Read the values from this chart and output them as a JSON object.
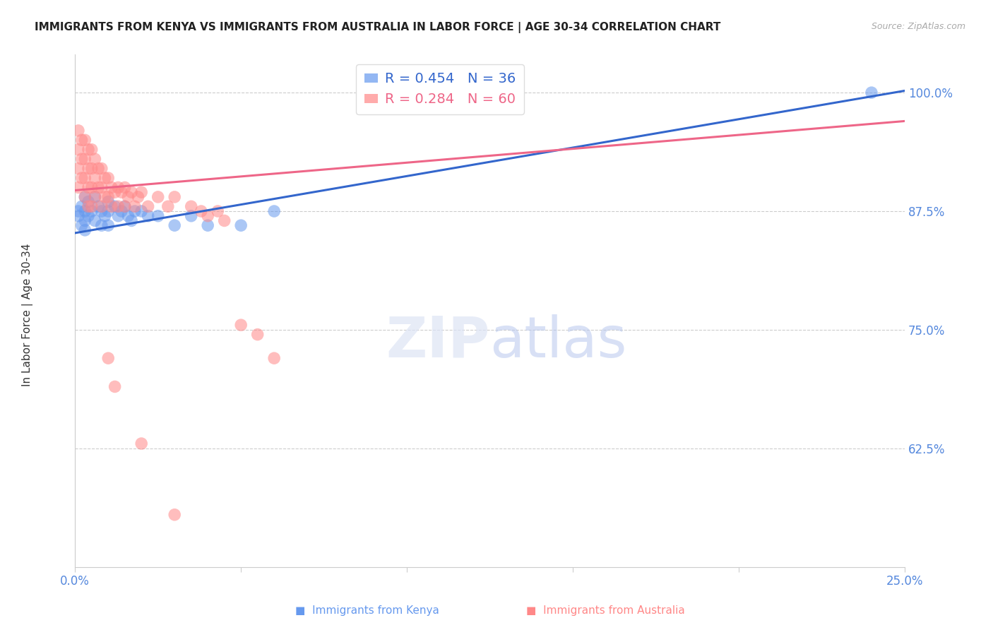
{
  "title": "IMMIGRANTS FROM KENYA VS IMMIGRANTS FROM AUSTRALIA IN LABOR FORCE | AGE 30-34 CORRELATION CHART",
  "source": "Source: ZipAtlas.com",
  "ylabel": "In Labor Force | Age 30-34",
  "xlim": [
    0.0,
    0.25
  ],
  "ylim": [
    0.5,
    1.04
  ],
  "xticks": [
    0.0,
    0.05,
    0.1,
    0.15,
    0.2,
    0.25
  ],
  "xticklabels": [
    "0.0%",
    "",
    "",
    "",
    "",
    "25.0%"
  ],
  "yticks": [
    0.625,
    0.75,
    0.875,
    1.0
  ],
  "yticklabels": [
    "62.5%",
    "75.0%",
    "87.5%",
    "100.0%"
  ],
  "kenya_color": "#6699EE",
  "australia_color": "#FF8888",
  "kenya_R": 0.454,
  "kenya_N": 36,
  "australia_R": 0.284,
  "australia_N": 60,
  "kenya_line_color": "#3366CC",
  "australia_line_color": "#EE6688",
  "kenya_scatter_x": [
    0.001,
    0.001,
    0.002,
    0.002,
    0.003,
    0.003,
    0.003,
    0.003,
    0.004,
    0.004,
    0.005,
    0.006,
    0.006,
    0.007,
    0.008,
    0.008,
    0.009,
    0.01,
    0.01,
    0.01,
    0.012,
    0.013,
    0.014,
    0.015,
    0.016,
    0.017,
    0.018,
    0.02,
    0.022,
    0.025,
    0.03,
    0.035,
    0.04,
    0.05,
    0.06,
    0.24
  ],
  "kenya_scatter_y": [
    0.875,
    0.87,
    0.88,
    0.86,
    0.89,
    0.875,
    0.865,
    0.855,
    0.885,
    0.87,
    0.875,
    0.89,
    0.865,
    0.88,
    0.875,
    0.86,
    0.87,
    0.885,
    0.875,
    0.86,
    0.88,
    0.87,
    0.875,
    0.88,
    0.87,
    0.865,
    0.875,
    0.875,
    0.87,
    0.87,
    0.86,
    0.87,
    0.86,
    0.86,
    0.875,
    1.0
  ],
  "australia_scatter_x": [
    0.001,
    0.001,
    0.001,
    0.001,
    0.002,
    0.002,
    0.002,
    0.003,
    0.003,
    0.003,
    0.003,
    0.004,
    0.004,
    0.004,
    0.004,
    0.005,
    0.005,
    0.005,
    0.005,
    0.006,
    0.006,
    0.006,
    0.007,
    0.007,
    0.008,
    0.008,
    0.008,
    0.009,
    0.009,
    0.01,
    0.01,
    0.011,
    0.011,
    0.012,
    0.013,
    0.013,
    0.014,
    0.015,
    0.015,
    0.016,
    0.017,
    0.018,
    0.019,
    0.02,
    0.022,
    0.025,
    0.028,
    0.03,
    0.035,
    0.038,
    0.04,
    0.043,
    0.045,
    0.05,
    0.055,
    0.06,
    0.01,
    0.012,
    0.02,
    0.03
  ],
  "australia_scatter_y": [
    0.96,
    0.94,
    0.92,
    0.9,
    0.95,
    0.93,
    0.91,
    0.95,
    0.93,
    0.91,
    0.89,
    0.94,
    0.92,
    0.9,
    0.88,
    0.94,
    0.92,
    0.9,
    0.88,
    0.93,
    0.91,
    0.89,
    0.92,
    0.9,
    0.92,
    0.9,
    0.88,
    0.91,
    0.89,
    0.91,
    0.89,
    0.9,
    0.88,
    0.895,
    0.9,
    0.88,
    0.895,
    0.9,
    0.88,
    0.89,
    0.895,
    0.88,
    0.89,
    0.895,
    0.88,
    0.89,
    0.88,
    0.89,
    0.88,
    0.875,
    0.87,
    0.875,
    0.865,
    0.755,
    0.745,
    0.72,
    0.72,
    0.69,
    0.63,
    0.555
  ]
}
